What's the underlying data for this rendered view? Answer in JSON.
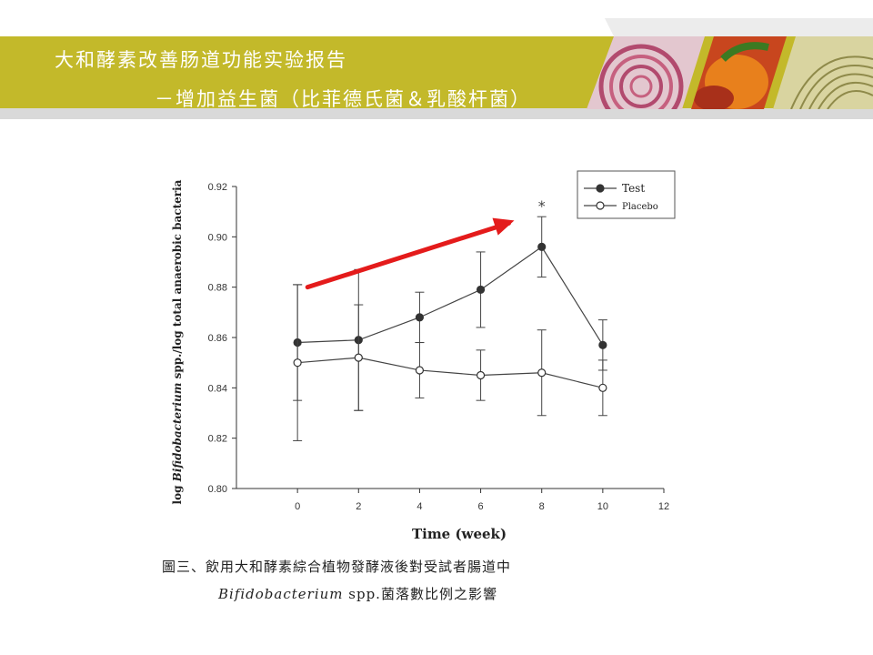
{
  "header": {
    "title_line1": "大和酵素改善肠道功能实验报告",
    "title_line2": "－增加益生菌（比菲德氏菌＆乳酸杆菌）"
  },
  "colors": {
    "banner": "#c3b92a",
    "arrow": "#e41b1b",
    "series": "#444444"
  },
  "chart_data": {
    "type": "line",
    "xlabel": "Time (week)",
    "ylabel_prefix": "log ",
    "ylabel_italic": "Bifidobacterium",
    "ylabel_suffix": " spp./log total anaerobic bacteria",
    "xlim": [
      -2,
      12
    ],
    "ylim": [
      0.8,
      0.92
    ],
    "xticks": [
      0,
      2,
      4,
      6,
      8,
      10,
      12
    ],
    "xtick_labels": [
      "0",
      "2",
      "4",
      "6",
      "8",
      "10",
      "12"
    ],
    "yticks": [
      0.8,
      0.82,
      0.84,
      0.86,
      0.88,
      0.9,
      0.92
    ],
    "ytick_labels": [
      "0.80",
      "0.82",
      "0.84",
      "0.86",
      "0.88",
      "0.90",
      "0.92"
    ],
    "legend_position": "top-right",
    "series": [
      {
        "name": "Test",
        "marker": "filled",
        "x": [
          0,
          2,
          4,
          6,
          8,
          10
        ],
        "y": [
          0.858,
          0.859,
          0.868,
          0.879,
          0.896,
          0.857
        ],
        "err": [
          0.023,
          0.028,
          0.01,
          0.015,
          0.012,
          0.01
        ]
      },
      {
        "name": "Placebo",
        "marker": "open",
        "x": [
          0,
          2,
          4,
          6,
          8,
          10
        ],
        "y": [
          0.85,
          0.852,
          0.847,
          0.845,
          0.846,
          0.84
        ],
        "err": [
          0.031,
          0.021,
          0.011,
          0.01,
          0.017,
          0.011
        ]
      }
    ],
    "annotations": [
      {
        "text": "*",
        "x": 8
      }
    ]
  },
  "caption": {
    "line1": "圖三、飲用大和酵素綜合植物發酵液後對受試者腸道中",
    "line2_italic": "Bifidobacterium",
    "line2_rest": " spp.菌落數比例之影響"
  }
}
